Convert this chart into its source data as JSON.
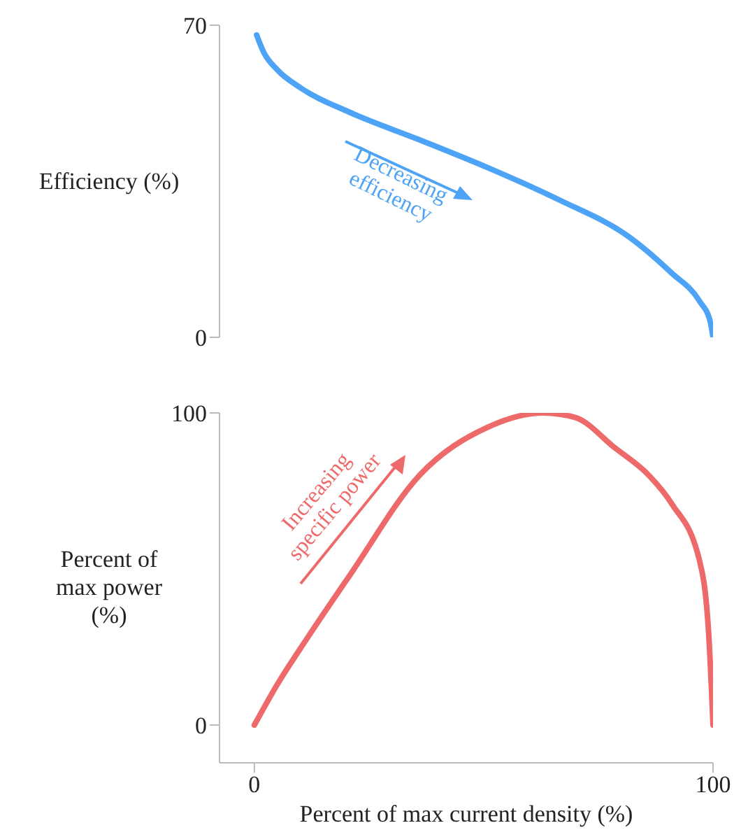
{
  "chart_data": [
    {
      "type": "line",
      "ylabel": "Efficiency (%)",
      "annotations": [
        "Decreasing efficiency"
      ],
      "xlim": [
        -7.6,
        100
      ],
      "ylim": [
        0,
        70
      ],
      "yticks": [
        0,
        70
      ],
      "tick_labels": "y",
      "marker": "none",
      "line_style": "solid",
      "series": [
        {
          "color": "#4da3f5",
          "x": [
            0.5,
            2,
            5,
            10,
            20.7,
            36,
            51,
            66.5,
            82,
            91,
            97,
            99.4,
            100
          ],
          "values": [
            67.8,
            64,
            60,
            56,
            50.5,
            44.3,
            38,
            30.8,
            22.3,
            14.4,
            8.2,
            3.5,
            0
          ]
        }
      ]
    },
    {
      "type": "line",
      "ylabel": "Percent of max power (%)",
      "xlabel": "Percent of max current density (%)",
      "annotations": [
        "Increasing specific power"
      ],
      "xlim": [
        -7.6,
        100
      ],
      "xticks": [
        0,
        100
      ],
      "ylim": [
        -12.1,
        100
      ],
      "yticks": [
        0,
        100
      ],
      "marker": "none",
      "line_style": "solid",
      "series": [
        {
          "color": "#ee6a6a",
          "x": [
            0,
            5,
            11.6,
            21,
            36,
            51,
            63,
            70,
            78.6,
            86,
            91,
            97,
            99,
            100
          ],
          "values": [
            0,
            13,
            28,
            48.4,
            80,
            95.5,
            100,
            98.5,
            88.8,
            80,
            70.9,
            53,
            30.5,
            0
          ]
        }
      ]
    }
  ]
}
